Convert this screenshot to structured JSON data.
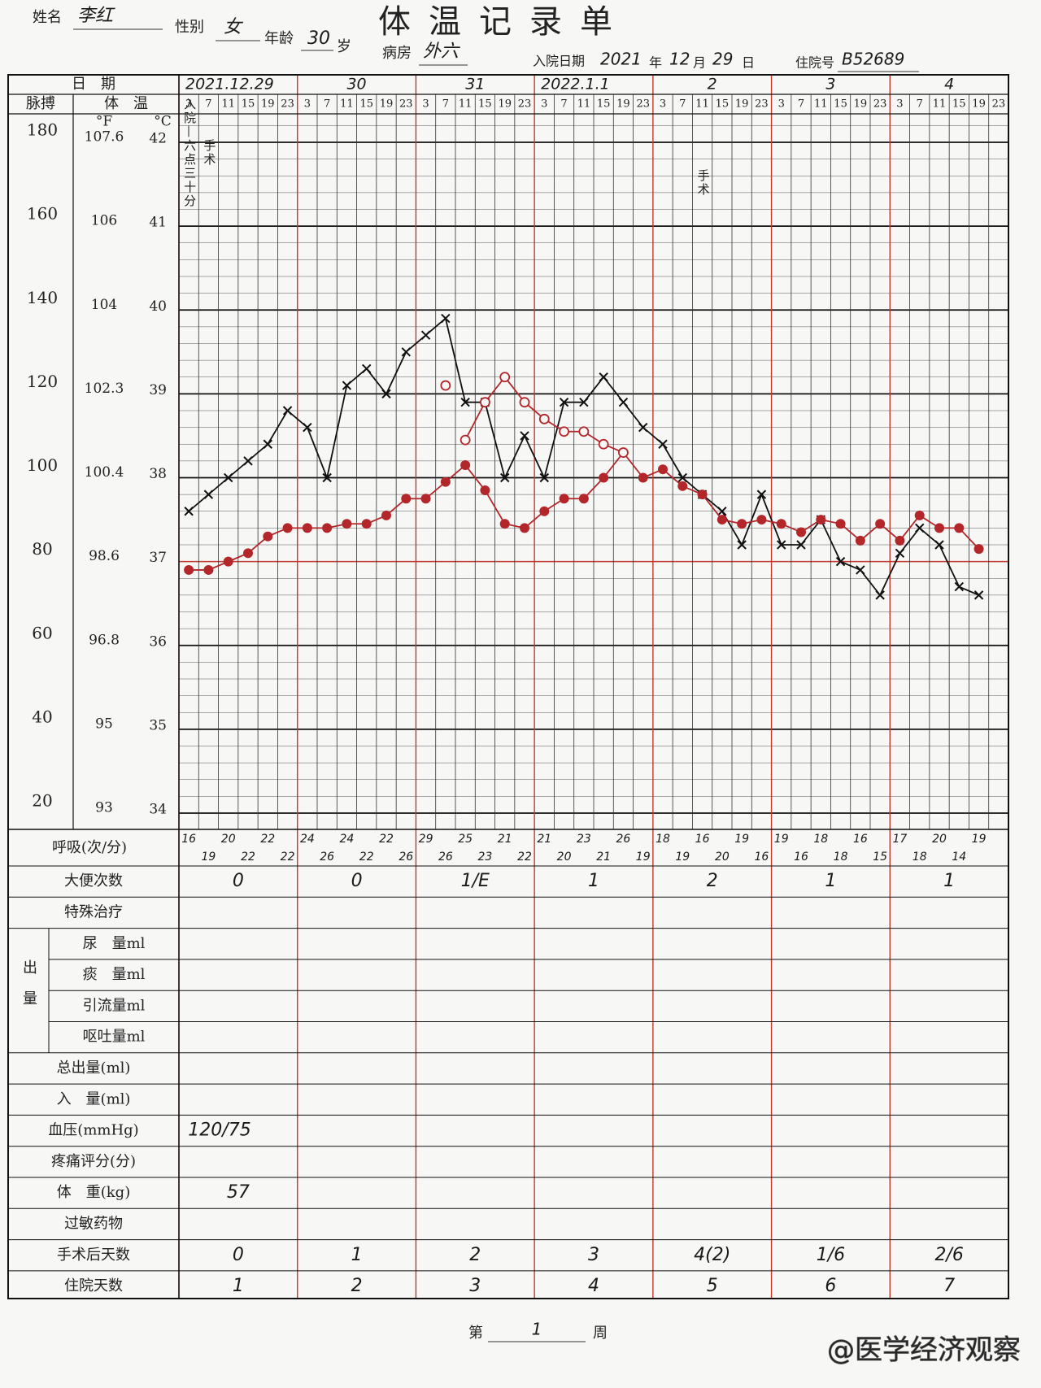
{
  "header": {
    "title": "体温记录单",
    "name_label": "姓名",
    "name": "李红",
    "sex_label": "性别",
    "sex": "女",
    "age_label": "年龄",
    "age": "30",
    "age_unit": "岁",
    "ward_label": "病房",
    "ward": "外六",
    "admit_label": "入院日期",
    "admit_year": "2021",
    "year_unit": "年",
    "admit_month": "12",
    "month_unit": "月",
    "admit_day": "29",
    "day_unit": "日",
    "id_label": "住院号",
    "id": "B52689"
  },
  "chart": {
    "date_label": "日　期",
    "pulse_label": "脉搏",
    "temp_label": "体　温",
    "f_unit": "°F",
    "c_unit": "°C",
    "dates": [
      "2021.12.29",
      "30",
      "31",
      "2022.1.1",
      "2",
      "3",
      "4"
    ],
    "times": [
      3,
      7,
      11,
      15,
      19,
      23
    ],
    "ylim": [
      34,
      42
    ],
    "c_ticks": [
      42,
      41,
      40,
      39,
      38,
      37,
      36,
      35,
      34
    ],
    "f_ticks": [
      {
        "value": 42,
        "label": "107.6"
      },
      {
        "value": 41,
        "label": "106"
      },
      {
        "value": 40,
        "label": "104"
      },
      {
        "value": 39,
        "label": "102.3"
      },
      {
        "value": 38,
        "label": "100.4"
      },
      {
        "value": 37,
        "label": "98.6"
      },
      {
        "value": 36,
        "label": "96.8"
      },
      {
        "value": 35,
        "label": "95"
      },
      {
        "value": 34,
        "label": "93"
      }
    ],
    "pulse_lim": [
      20,
      180
    ],
    "pulse_ticks": [
      180,
      160,
      140,
      120,
      100,
      80,
      60,
      40,
      20
    ],
    "annotations": [
      "入院—六点三十分",
      "手术",
      "手术"
    ],
    "series": [
      {
        "name": "体　温",
        "axis": "c",
        "color": "#111111",
        "marker": "cross",
        "values": [
          37.6,
          37.8,
          38.0,
          38.2,
          38.4,
          38.8,
          38.6,
          38.0,
          39.1,
          39.3,
          39.0,
          39.5,
          39.7,
          39.9,
          38.9,
          38.9,
          38.0,
          38.5,
          38.0,
          38.9,
          38.9,
          39.2,
          38.9,
          38.6,
          38.4,
          38.0,
          37.8,
          37.6,
          37.2,
          37.8,
          37.2,
          37.2,
          37.5,
          37.0,
          36.9,
          36.6,
          37.1,
          37.4,
          37.2,
          36.7,
          36.6,
          null
        ]
      },
      {
        "name": "脉搏",
        "axis": "pulse",
        "color": "#b3262a",
        "marker": "dot",
        "values": [
          78,
          78,
          80,
          82,
          86,
          88,
          88,
          88,
          89,
          89,
          91,
          95,
          95,
          99,
          103,
          97,
          89,
          88,
          92,
          95,
          95,
          100,
          106,
          100,
          102,
          98,
          96,
          90,
          89,
          90,
          89,
          87,
          90,
          89,
          85,
          89,
          85,
          91,
          88,
          88,
          83,
          null
        ]
      },
      {
        "axis": "pulse",
        "color": "#b3262a",
        "marker": "circle",
        "values": [
          null,
          null,
          null,
          null,
          null,
          null,
          null,
          null,
          null,
          null,
          null,
          null,
          null,
          null,
          109,
          118,
          124,
          118,
          114,
          111,
          111,
          108,
          106,
          null,
          null,
          null,
          null,
          null,
          null,
          null,
          null,
          null,
          null,
          null,
          null,
          null,
          null,
          null,
          null,
          null,
          null,
          null
        ]
      },
      {
        "axis": "c",
        "color": "#b3262a",
        "marker": "circle",
        "values": [
          null,
          null,
          null,
          null,
          null,
          null,
          null,
          null,
          null,
          null,
          null,
          null,
          null,
          39.1,
          null,
          null,
          null,
          null,
          null,
          null,
          null,
          null,
          null,
          null,
          null,
          null,
          null,
          null,
          null,
          null,
          null,
          null,
          null,
          null,
          null,
          null,
          null,
          null,
          null,
          null,
          null,
          null
        ]
      }
    ]
  },
  "respiration": {
    "label": "呼吸(次/分)",
    "values": [
      16,
      19,
      20,
      22,
      22,
      22,
      24,
      26,
      24,
      22,
      22,
      26,
      29,
      26,
      25,
      23,
      21,
      22,
      21,
      20,
      23,
      21,
      26,
      19,
      18,
      19,
      16,
      20,
      19,
      16,
      19,
      16,
      18,
      18,
      16,
      15,
      17,
      18,
      20,
      14,
      19,
      null
    ]
  },
  "rows_top": [
    {
      "label": "大便次数",
      "values": [
        "0",
        "0",
        "1/E",
        "1",
        "2",
        "1",
        "1"
      ]
    },
    {
      "label": "特殊治疗"
    }
  ],
  "output": {
    "label": "出量",
    "rows": [
      {
        "label": "尿　量ml"
      },
      {
        "label": "痰　量ml"
      },
      {
        "label": "引流量ml"
      },
      {
        "label": "呕吐量ml"
      }
    ]
  },
  "rows_bottom": [
    {
      "label": "总出量(ml)"
    },
    {
      "label": "入　量(ml)"
    },
    {
      "label": "血压(mmHg)",
      "values": [
        "120/75",
        null,
        null,
        null,
        null,
        null,
        null
      ]
    },
    {
      "label": "疼痛评分(分)"
    },
    {
      "label": "体　重(kg)",
      "values": [
        "57",
        null,
        null,
        null,
        null,
        null,
        null
      ]
    },
    {
      "label": "过敏药物"
    },
    {
      "label": "手术后天数",
      "values": [
        "0",
        "1",
        "2",
        "3",
        "4(2)",
        "1/6",
        "2/6"
      ]
    },
    {
      "label": "住院天数",
      "values": [
        "1",
        "2",
        "3",
        "4",
        "5",
        "6",
        "7"
      ]
    }
  ],
  "footer": {
    "prefix": "第",
    "week": "1",
    "suffix": "周"
  },
  "watermark": "@医学经济观察"
}
